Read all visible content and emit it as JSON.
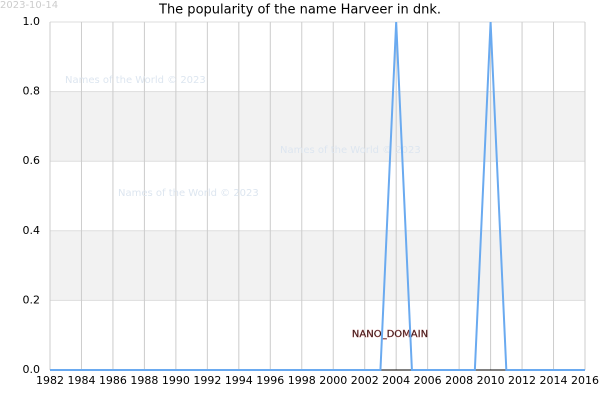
{
  "chart_data": {
    "type": "line",
    "title": "The popularity of the name Harveer in dnk.",
    "date_stamp": "2023-10-14",
    "watermarks": [
      "Names of the World © 2023",
      "Names of the World © 2023",
      "Names of the World © 2023"
    ],
    "domain_label": "NANO_DOMAIN",
    "x": [
      1982,
      1983,
      1984,
      1985,
      1986,
      1987,
      1988,
      1989,
      1990,
      1991,
      1992,
      1993,
      1994,
      1995,
      1996,
      1997,
      1998,
      1999,
      2000,
      2001,
      2002,
      2003,
      2004,
      2005,
      2006,
      2007,
      2008,
      2009,
      2010,
      2011,
      2012,
      2013,
      2014,
      2015,
      2016
    ],
    "series": [
      {
        "name": "Harveer",
        "color": "#6aaaf0",
        "values": [
          0,
          0,
          0,
          0,
          0,
          0,
          0,
          0,
          0,
          0,
          0,
          0,
          0,
          0,
          0,
          0,
          0,
          0,
          0,
          0,
          0,
          0,
          1,
          0,
          0,
          0,
          0,
          0,
          1,
          0,
          0,
          0,
          0,
          0,
          0
        ]
      }
    ],
    "xlim": [
      1982,
      2016
    ],
    "xticks": [
      1982,
      1984,
      1986,
      1988,
      1990,
      1992,
      1994,
      1996,
      1998,
      2000,
      2002,
      2004,
      2006,
      2008,
      2010,
      2012,
      2014,
      2016
    ],
    "ylim": [
      0,
      1
    ],
    "yticks": [
      {
        "value": 0,
        "label": "0.0"
      },
      0.2,
      0.4,
      0.6,
      0.8,
      {
        "value": 1,
        "label": "1.0"
      }
    ],
    "grid": true
  }
}
